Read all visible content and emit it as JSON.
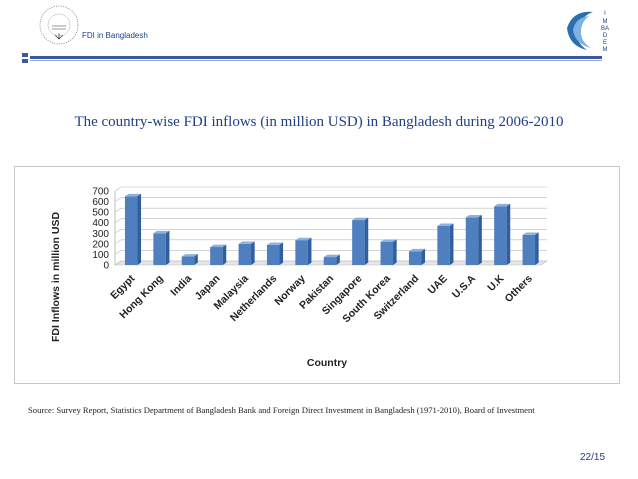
{
  "header": {
    "title": "FDI in Bangladesh"
  },
  "logo": {
    "letters": [
      "I",
      "M",
      "BA",
      "D",
      "E",
      "M"
    ]
  },
  "slide": {
    "title": "The country-wise FDI inflows (in million USD) in Bangladesh  during 2006-2010"
  },
  "chart_data": {
    "type": "bar",
    "title": "",
    "xlabel": "Country",
    "ylabel": "FDI Inflows in million USD",
    "categories": [
      "Egypt",
      "Hong Kong",
      "India",
      "Japan",
      "Malaysia",
      "Netherlands",
      "Norway",
      "Pakistan",
      "Singapore",
      "South Korea",
      "Switzerland",
      "UAE",
      "U.S.A",
      "U.K",
      "Others"
    ],
    "values": [
      650,
      300,
      80,
      170,
      200,
      190,
      235,
      75,
      425,
      220,
      130,
      370,
      450,
      555,
      285
    ],
    "ylim": [
      0,
      700
    ],
    "yticks": [
      0,
      100,
      200,
      300,
      400,
      500,
      600,
      700
    ],
    "grid": true,
    "colors": {
      "bar": "#4f7fbf",
      "bar_top": "#8eb0dc",
      "bar_side": "#2f5f9f"
    }
  },
  "footer": {
    "source": "Source: Survey Report, Statistics Department of Bangladesh Bank and Foreign Direct Investment in Bangladesh (1971-2010), Board of Investment",
    "page": "22/15"
  }
}
